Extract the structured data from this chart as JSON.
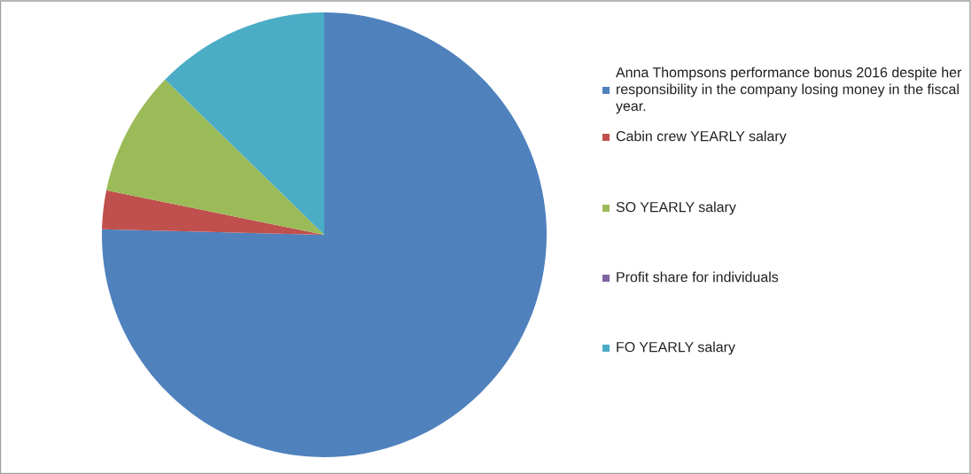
{
  "chart_data": {
    "type": "pie",
    "categories": [
      "Anna Thompsons performance bonus 2016 despite her responsibility in the company losing money in the fiscal year.",
      "Cabin crew YEARLY salary",
      "SO YEARLY salary",
      "Profit share for individuals",
      "FO YEARLY salary"
    ],
    "values": [
      75.4,
      2.8,
      9.1,
      0,
      12.7
    ],
    "colors": [
      "#4f81bd",
      "#c0504d",
      "#9bbb59",
      "#8064a2",
      "#4bacc6"
    ],
    "legend": "right"
  }
}
